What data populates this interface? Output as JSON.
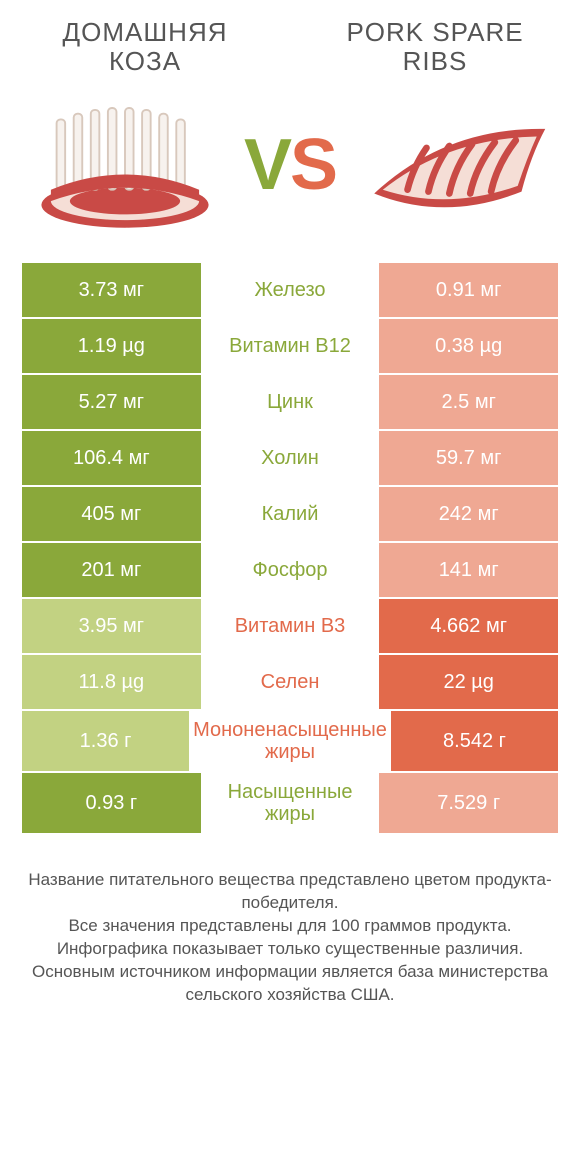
{
  "products": {
    "left": {
      "title": "ДОМАШНЯЯ КОЗА"
    },
    "right": {
      "title": "PORK SPARE RIBS"
    }
  },
  "vs_label": "VS",
  "colors": {
    "left_win": "#8aa83a",
    "left_lose": "#c2d282",
    "right_win": "#e26a4b",
    "right_lose": "#efa893",
    "text": "#555555"
  },
  "rows": [
    {
      "name": "Железо",
      "left": "3.73 мг",
      "right": "0.91 мг",
      "winner": "left"
    },
    {
      "name": "Витамин B12",
      "left": "1.19 µg",
      "right": "0.38 µg",
      "winner": "left"
    },
    {
      "name": "Цинк",
      "left": "5.27 мг",
      "right": "2.5 мг",
      "winner": "left"
    },
    {
      "name": "Холин",
      "left": "106.4 мг",
      "right": "59.7 мг",
      "winner": "left"
    },
    {
      "name": "Калий",
      "left": "405 мг",
      "right": "242 мг",
      "winner": "left"
    },
    {
      "name": "Фосфор",
      "left": "201 мг",
      "right": "141 мг",
      "winner": "left"
    },
    {
      "name": "Витамин B3",
      "left": "3.95 мг",
      "right": "4.662 мг",
      "winner": "right"
    },
    {
      "name": "Селен",
      "left": "11.8 µg",
      "right": "22 µg",
      "winner": "right"
    },
    {
      "name": "Мононенасыщенные жиры",
      "left": "1.36 г",
      "right": "8.542 г",
      "winner": "right"
    },
    {
      "name": "Насыщенные жиры",
      "left": "0.93 г",
      "right": "7.529 г",
      "winner": "left"
    }
  ],
  "footer": [
    "Название питательного вещества представлено цветом продукта-победителя.",
    "Все значения представлены для 100 граммов продукта.",
    "Инфографика показывает только существенные различия.",
    "Основным источником информации является база министерства сельского хозяйства США."
  ]
}
